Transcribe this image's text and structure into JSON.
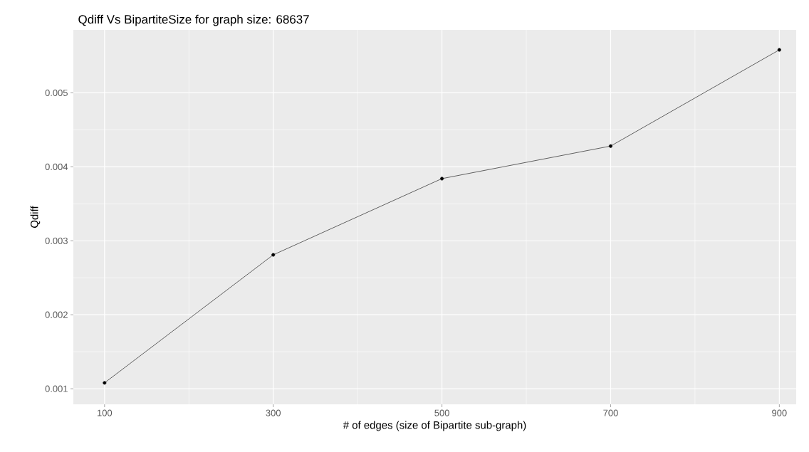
{
  "chart_data": {
    "type": "line",
    "title": "Qdiff Vs BipartiteSize for graph size:  68637",
    "xlabel": "# of edges (size of Bipartite sub-graph)",
    "ylabel": "Qdiff",
    "x": [
      100,
      300,
      500,
      700,
      900
    ],
    "series": [
      {
        "color": "#000000",
        "values": [
          0.00108,
          0.00281,
          0.00384,
          0.00428,
          0.00558
        ]
      }
    ],
    "xlim": [
      63,
      920
    ],
    "ylim": [
      0.00079,
      0.00585
    ],
    "xticks": [
      100,
      300,
      500,
      700,
      900
    ],
    "yticks": [
      0.001,
      0.002,
      0.003,
      0.004,
      0.005
    ],
    "grid": true,
    "marker": "circle",
    "line_style": "solid"
  }
}
